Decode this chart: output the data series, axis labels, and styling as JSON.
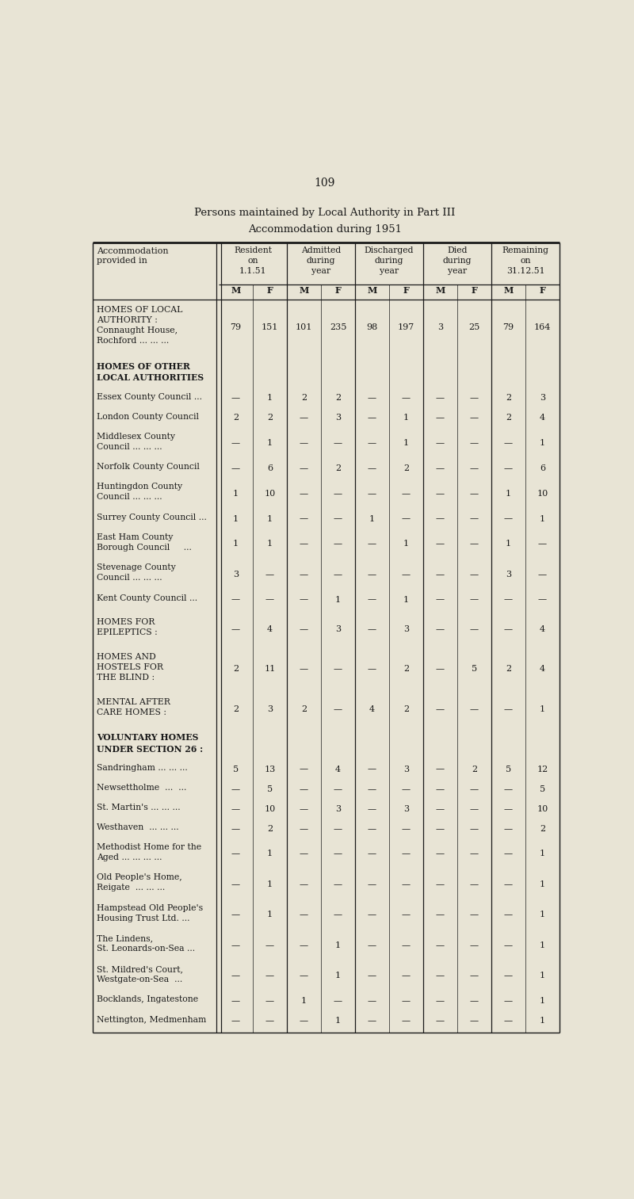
{
  "page_number": "109",
  "title_line1": "Persons maintained by Local Authority in Part III",
  "title_line2": "Accommodation during 1951",
  "col_groups": [
    {
      "label": "Resident\non\n1.1.51"
    },
    {
      "label": "Admitted\nduring\nyear"
    },
    {
      "label": "Discharged\nduring\nyear"
    },
    {
      "label": "Died\nduring\nyear"
    },
    {
      "label": "Remaining\non\n31.12.51"
    }
  ],
  "rows": [
    {
      "label": "HOMES OF LOCAL\nAUTHORITY :\nConnaught House,\nRochford ... ... ...",
      "section_header": false,
      "data": [
        "79",
        "151",
        "101",
        "235",
        "98",
        "197",
        "3",
        "25",
        "79",
        "164"
      ]
    },
    {
      "label": "HOMES OF OTHER\nLOCAL AUTHORITIES",
      "section_header": true,
      "data": [
        "",
        "",
        "",
        "",
        "",
        "",
        "",
        "",
        "",
        ""
      ]
    },
    {
      "label": "Essex County Council ...",
      "section_header": false,
      "data": [
        "—",
        "1",
        "2",
        "2",
        "—",
        "—",
        "—",
        "—",
        "2",
        "3"
      ]
    },
    {
      "label": "London County Council",
      "section_header": false,
      "data": [
        "2",
        "2",
        "—",
        "3",
        "—",
        "1",
        "—",
        "—",
        "2",
        "4"
      ]
    },
    {
      "label": "Middlesex County\nCouncil ... ... ...",
      "section_header": false,
      "data": [
        "—",
        "1",
        "—",
        "—",
        "—",
        "1",
        "—",
        "—",
        "—",
        "1"
      ]
    },
    {
      "label": "Norfolk County Council",
      "section_header": false,
      "data": [
        "—",
        "6",
        "—",
        "2",
        "—",
        "2",
        "—",
        "—",
        "—",
        "6"
      ]
    },
    {
      "label": "Huntingdon County\nCouncil ... ... ...",
      "section_header": false,
      "data": [
        "1",
        "10",
        "—",
        "—",
        "—",
        "—",
        "—",
        "—",
        "1",
        "10"
      ]
    },
    {
      "label": "Surrey County Council ...",
      "section_header": false,
      "data": [
        "1",
        "1",
        "—",
        "—",
        "1",
        "—",
        "—",
        "—",
        "—",
        "1"
      ]
    },
    {
      "label": "East Ham County\nBorough Council     ...",
      "section_header": false,
      "data": [
        "1",
        "1",
        "—",
        "—",
        "—",
        "1",
        "—",
        "—",
        "1",
        "—"
      ]
    },
    {
      "label": "Stevenage County\nCouncil ... ... ...",
      "section_header": false,
      "data": [
        "3",
        "—",
        "—",
        "—",
        "—",
        "—",
        "—",
        "—",
        "3",
        "—"
      ]
    },
    {
      "label": "Kent County Council ...",
      "section_header": false,
      "data": [
        "—",
        "—",
        "—",
        "1",
        "—",
        "1",
        "—",
        "—",
        "—",
        "—"
      ]
    },
    {
      "label": "HOMES FOR\nEPILEPTICS :",
      "section_header": false,
      "data": [
        "—",
        "4",
        "—",
        "3",
        "—",
        "3",
        "—",
        "—",
        "—",
        "4"
      ]
    },
    {
      "label": "HOMES AND\nHOSTELS FOR\nTHE BLIND :",
      "section_header": false,
      "data": [
        "2",
        "11",
        "—",
        "—",
        "—",
        "2",
        "—",
        "5",
        "2",
        "4"
      ]
    },
    {
      "label": "MENTAL AFTER\nCARE HOMES :",
      "section_header": false,
      "data": [
        "2",
        "3",
        "2",
        "—",
        "4",
        "2",
        "—",
        "—",
        "—",
        "1"
      ]
    },
    {
      "label": "VOLUNTARY HOMES\nUNDER SECTION 26 :",
      "section_header": true,
      "data": [
        "",
        "",
        "",
        "",
        "",
        "",
        "",
        "",
        "",
        ""
      ]
    },
    {
      "label": "Sandringham ... ... ...",
      "section_header": false,
      "data": [
        "5",
        "13",
        "—",
        "4",
        "—",
        "3",
        "—",
        "2",
        "5",
        "12"
      ]
    },
    {
      "label": "Newsettholme  ...  ...",
      "section_header": false,
      "data": [
        "—",
        "5",
        "—",
        "—",
        "—",
        "—",
        "—",
        "—",
        "—",
        "5"
      ]
    },
    {
      "label": "St. Martin's ... ... ...",
      "section_header": false,
      "data": [
        "—",
        "10",
        "—",
        "3",
        "—",
        "3",
        "—",
        "—",
        "—",
        "10"
      ]
    },
    {
      "label": "Westhaven  ... ... ...",
      "section_header": false,
      "data": [
        "—",
        "2",
        "—",
        "—",
        "—",
        "—",
        "—",
        "—",
        "—",
        "2"
      ]
    },
    {
      "label": "Methodist Home for the\nAged ... ... ... ...",
      "section_header": false,
      "data": [
        "—",
        "1",
        "—",
        "—",
        "—",
        "—",
        "—",
        "—",
        "—",
        "1"
      ]
    },
    {
      "label": "Old People's Home,\nReigate  ... ... ...",
      "section_header": false,
      "data": [
        "—",
        "1",
        "—",
        "—",
        "—",
        "—",
        "—",
        "—",
        "—",
        "1"
      ]
    },
    {
      "label": "Hampstead Old People's\nHousing Trust Ltd. ...",
      "section_header": false,
      "data": [
        "—",
        "1",
        "—",
        "—",
        "—",
        "—",
        "—",
        "—",
        "—",
        "1"
      ]
    },
    {
      "label": "The Lindens,\nSt. Leonards-on-Sea ...",
      "section_header": false,
      "data": [
        "—",
        "—",
        "—",
        "1",
        "—",
        "—",
        "—",
        "—",
        "—",
        "1"
      ]
    },
    {
      "label": "St. Mildred's Court,\nWestgate-on-Sea  ...",
      "section_header": false,
      "data": [
        "—",
        "—",
        "—",
        "1",
        "—",
        "—",
        "—",
        "—",
        "—",
        "1"
      ]
    },
    {
      "label": "Bocklands, Ingatestone",
      "section_header": false,
      "data": [
        "—",
        "—",
        "1",
        "—",
        "—",
        "—",
        "—",
        "—",
        "—",
        "1"
      ]
    },
    {
      "label": "Nettington, Medmenham",
      "section_header": false,
      "data": [
        "—",
        "—",
        "—",
        "1",
        "—",
        "—",
        "—",
        "—",
        "—",
        "1"
      ]
    }
  ],
  "bg_color": "#e8e4d5",
  "text_color": "#1a1a1a",
  "line_color": "#1a1a1a",
  "fig_width": 8.0,
  "fig_height": 15.13,
  "dpi": 100
}
